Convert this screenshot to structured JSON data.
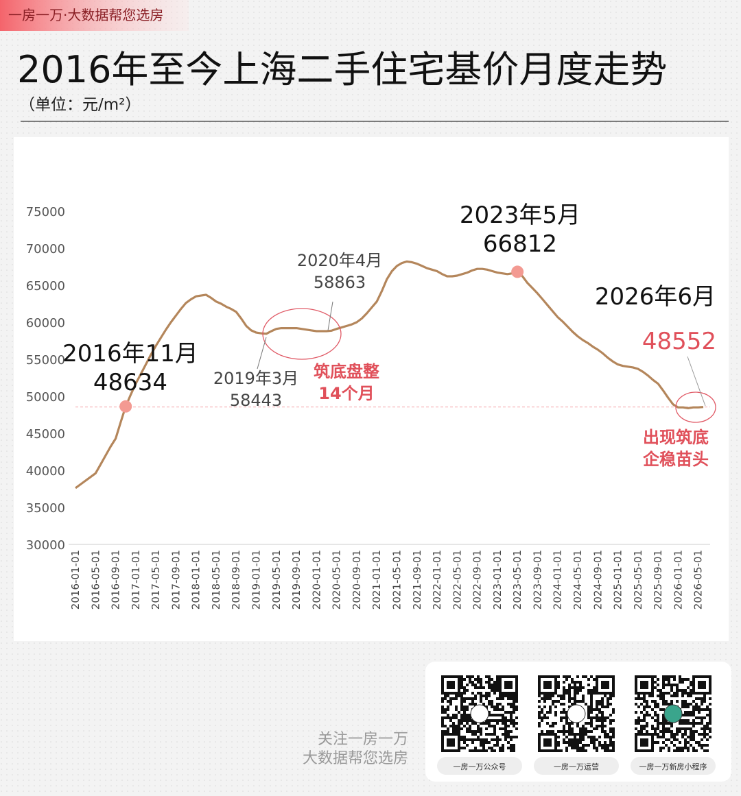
{
  "header": {
    "brand": "一房一万·大数据帮您选房"
  },
  "chart_data": {
    "type": "line",
    "title": "2016年至今上海二手住宅基价月度走势",
    "subtitle": "（单位：元/m²）",
    "categories": [
      "2016-01-01",
      null,
      null,
      null,
      "2016-05-01",
      null,
      null,
      null,
      "2016-09-01",
      null,
      null,
      null,
      "2017-01-01",
      null,
      null,
      null,
      "2017-05-01",
      null,
      null,
      null,
      "2017-09-01",
      null,
      null,
      null,
      "2018-01-01",
      null,
      null,
      null,
      "2018-05-01",
      null,
      null,
      null,
      "2018-09-01",
      null,
      null,
      null,
      "2019-01-01",
      null,
      null,
      null,
      "2019-05-01",
      null,
      null,
      null,
      "2019-09-01",
      null,
      null,
      null,
      "2020-01-01",
      null,
      null,
      null,
      "2020-05-01",
      null,
      null,
      null,
      "2020-09-01",
      null,
      null,
      null,
      "2021-01-01",
      null,
      null,
      null,
      "2021-05-01",
      null,
      null,
      null,
      "2021-09-01",
      null,
      null,
      null,
      "2022-01-01",
      null,
      null,
      null,
      "2022-05-01",
      null,
      null,
      null,
      "2022-09-01",
      null,
      null,
      null,
      "2023-01-01",
      null,
      null,
      null,
      "2023-05-01",
      null,
      null,
      null,
      "2023-09-01",
      null,
      null,
      null,
      "2024-01-01",
      null,
      null,
      null,
      "2024-05-01",
      null,
      null,
      null,
      "2024-09-01",
      null,
      null,
      null,
      "2025-01-01",
      null,
      null,
      null,
      "2025-05-01",
      null,
      null,
      null,
      "2025-09-01",
      null,
      null,
      null,
      "2026-01-01",
      null,
      null,
      null,
      "2026-05-01",
      null
    ],
    "series": [
      {
        "color": "#b4865b",
        "values": [
          37600,
          38100,
          38600,
          39100,
          39600,
          40800,
          42000,
          43200,
          44300,
          46500,
          48634,
          50200,
          51700,
          53000,
          54300,
          55600,
          56800,
          57900,
          59000,
          60000,
          60900,
          61800,
          62600,
          63100,
          63500,
          63600,
          63700,
          63300,
          62800,
          62500,
          62100,
          61800,
          61400,
          60500,
          59500,
          58900,
          58600,
          58500,
          58443,
          58800,
          59100,
          59200,
          59200,
          59200,
          59200,
          59100,
          59000,
          58900,
          58800,
          58800,
          58800,
          58863,
          59100,
          59300,
          59500,
          59700,
          60000,
          60500,
          61200,
          62000,
          62800,
          64200,
          65800,
          66900,
          67600,
          68000,
          68200,
          68100,
          67900,
          67600,
          67300,
          67100,
          66900,
          66500,
          66200,
          66200,
          66300,
          66500,
          66700,
          67000,
          67200,
          67200,
          67100,
          66900,
          66700,
          66600,
          66500,
          66600,
          66812,
          66200,
          65300,
          64600,
          63900,
          63100,
          62300,
          61500,
          60700,
          60100,
          59400,
          58700,
          58100,
          57600,
          57200,
          56700,
          56300,
          55800,
          55200,
          54700,
          54300,
          54100,
          54000,
          53900,
          53700,
          53300,
          52800,
          52200,
          51700,
          50800,
          49800,
          48900,
          48500,
          48500,
          48400,
          48500,
          48500,
          48552
        ]
      }
    ],
    "ylim": [
      30000,
      75000
    ],
    "yticks": [
      30000,
      35000,
      40000,
      45000,
      50000,
      55000,
      60000,
      65000,
      70000,
      75000
    ],
    "grid": false,
    "annotations": [
      {
        "text": "2016年11月"
      },
      {
        "text": "2019年3月"
      },
      {
        "text": "2020年4月"
      },
      {
        "text": "2023年5月"
      },
      {
        "text": "2026年6月"
      },
      {
        "lines": [
          "筑底盘整",
          "14个月"
        ]
      },
      {
        "lines": [
          "出现筑底",
          "企稳苗头"
        ]
      }
    ]
  },
  "footer": {
    "follow": "关注一房一万",
    "slogan": "大数据帮您选房",
    "qr_labels": [
      "一房一万公众号",
      "一房一万运营",
      "一房一万新房小程序"
    ]
  }
}
